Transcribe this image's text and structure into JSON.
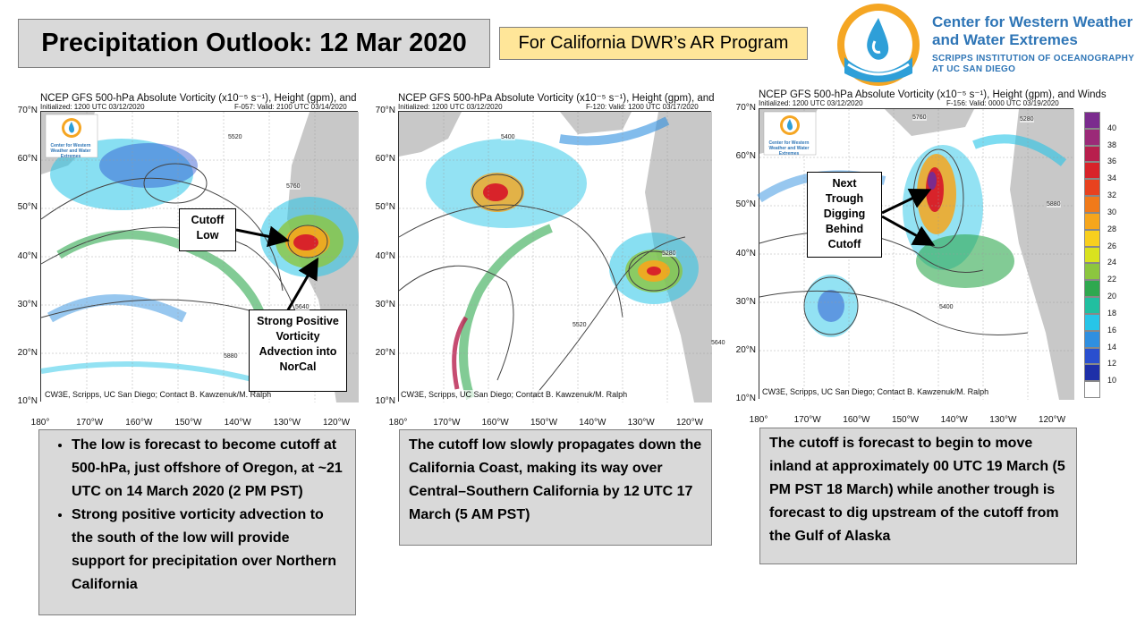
{
  "header": {
    "title": "Precipitation Outlook: 12 Mar 2020",
    "program": "For California DWR’s AR Program"
  },
  "logo": {
    "line1": "Center for Western Weather",
    "line2": "and Water Extremes",
    "sub1": "SCRIPPS INSTITUTION OF OCEANOGRAPHY",
    "sub2": "AT UC SAN DIEGO",
    "mini_text": "Center for Western Weather and Water Extremes"
  },
  "panels": [
    {
      "title": "NCEP GFS 500-hPa Absolute Vorticity (x10⁻⁵ s⁻¹), Height (gpm), and",
      "init": "Initialized: 1200 UTC 03/12/2020",
      "valid": "F-057: Valid: 2100 UTC 03/14/2020",
      "credit": "CW3E, Scripps, UC San Diego; Contact B. Kawzenuk/M. Ralph"
    },
    {
      "title": "NCEP GFS 500-hPa Absolute Vorticity (x10⁻⁵ s⁻¹), Height (gpm), and",
      "init": "Initialized: 1200 UTC 03/12/2020",
      "valid": "F-120: Valid: 1200 UTC 03/17/2020",
      "credit": "CW3E, Scripps, UC San Diego; Contact B. Kawzenuk/M. Ralph"
    },
    {
      "title": "NCEP GFS 500-hPa Absolute Vorticity (x10⁻⁵ s⁻¹), Height (gpm), and Winds",
      "init": "Initialized: 1200 UTC 03/12/2020",
      "valid": "F-156: Valid: 0000 UTC 03/19/2020",
      "credit": "CW3E, Scripps, UC San Diego; Contact B. Kawzenuk/M. Ralph"
    }
  ],
  "lat_labels": [
    "70°N",
    "60°N",
    "50°N",
    "40°N",
    "30°N",
    "20°N",
    "10°N"
  ],
  "lon_labels": [
    "180°",
    "170°W",
    "160°W",
    "150°W",
    "140°W",
    "130°W",
    "120°W"
  ],
  "callouts": {
    "cutoff_low": "Cutoff Low",
    "strong_pva": "Strong Positive Vorticity Advection into NorCal",
    "next_trough": "Next Trough Digging Behind Cutoff"
  },
  "colorbar": {
    "labels": [
      "40",
      "38",
      "36",
      "34",
      "32",
      "30",
      "28",
      "26",
      "24",
      "22",
      "20",
      "18",
      "16",
      "14",
      "12",
      "10"
    ],
    "colors": [
      "#7b2b8e",
      "#9b2a78",
      "#b81f4d",
      "#d8232a",
      "#e8421f",
      "#f07a1a",
      "#f6a61c",
      "#f8cf1e",
      "#d9e21f",
      "#8cc63f",
      "#2fa84f",
      "#21bfa0",
      "#27c5e8",
      "#2f8fe0",
      "#2a4fcf",
      "#1e2fa8",
      "#ffffff"
    ]
  },
  "text_boxes": {
    "box1_bullets": [
      "The low is forecast to become cutoff at 500-hPa, just offshore of Oregon, at ~21 UTC on 14 March 2020 (2 PM PST)",
      "Strong positive vorticity advection to the south of the low will provide support for precipitation over Northern California"
    ],
    "box2": "The cutoff low slowly propagates down the California Coast, making its way over Central–Southern California by 12 UTC 17 March (5 AM PST)",
    "box3": "The cutoff is forecast to begin to move inland at approximately 00 UTC 19 March (5 PM PST 18 March) while another trough is forecast to dig upstream of the cutoff from the Gulf of Alaska"
  },
  "contour_labels": [
    "5520",
    "5640",
    "5760",
    "5880",
    "5400",
    "5280"
  ]
}
